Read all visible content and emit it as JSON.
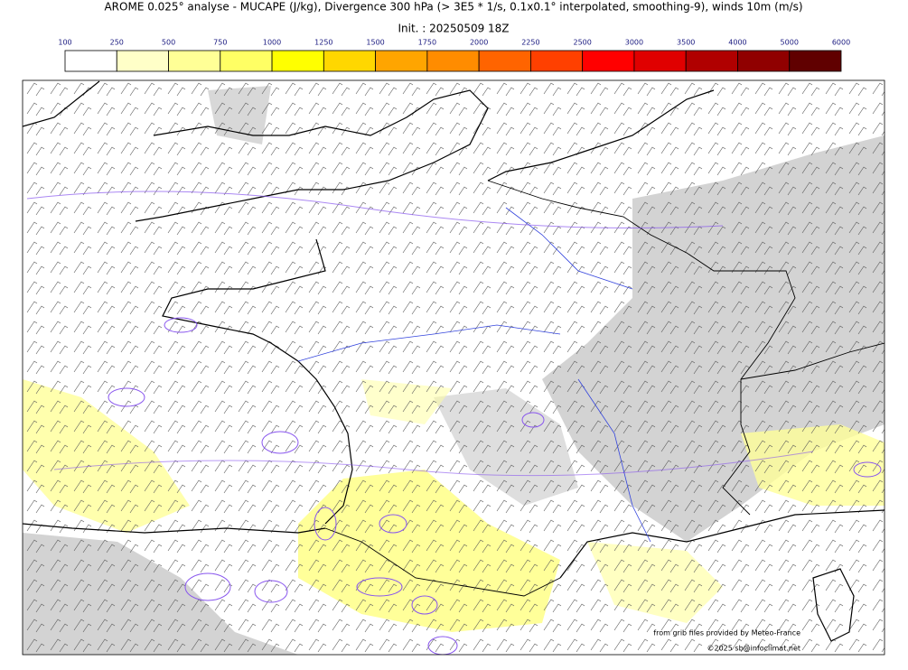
{
  "header": {
    "title": "AROME 0.025° analyse - MUCAPE (J/kg), Divergence 300 hPa (> 3E5 * 1/s, 0.1x0.1° interpolated, smoothing-9), winds 10m (m/s)",
    "init": "Init. : 20250509 18Z"
  },
  "colorbar": {
    "ticks": [
      100,
      250,
      500,
      750,
      1000,
      1250,
      1500,
      1750,
      2000,
      2250,
      2500,
      3000,
      3500,
      4000,
      5000,
      6000
    ],
    "colors": [
      "#ffffff",
      "#ffffc8",
      "#ffff96",
      "#ffff64",
      "#ffff00",
      "#ffd700",
      "#ffa500",
      "#ff8c00",
      "#ff6400",
      "#ff4000",
      "#ff0000",
      "#e00000",
      "#b00000",
      "#900000",
      "#600000"
    ]
  },
  "credits": {
    "source": "from grib files provided by Meteo-France",
    "copyright": "©2025 sb@infoclimat.net"
  }
}
